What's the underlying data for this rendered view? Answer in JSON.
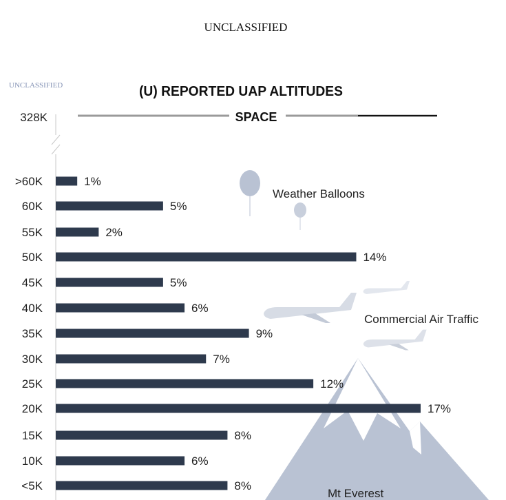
{
  "header": {
    "classification": "UNCLASSIFIED"
  },
  "corner_marking": "UNCLASSIFIED",
  "chart_data": {
    "type": "bar",
    "orientation": "horizontal",
    "title": "(U) REPORTED UAP ALTITUDES",
    "top_marker": {
      "label": "328K",
      "text": "SPACE"
    },
    "categories": [
      ">60K",
      "60K",
      "55K",
      "50K",
      "45K",
      "40K",
      "35K",
      "30K",
      "25K",
      "20K",
      "15K",
      "10K",
      "<5K"
    ],
    "values": [
      1,
      5,
      2,
      14,
      5,
      6,
      9,
      7,
      12,
      17,
      8,
      6,
      8
    ],
    "value_labels": [
      "1%",
      "5%",
      "2%",
      "14%",
      "5%",
      "6%",
      "9%",
      "7%",
      "12%",
      "17%",
      "8%",
      "6%",
      "8%"
    ],
    "xlim": [
      0,
      17
    ],
    "bar_color": "#2e3a4d",
    "annotations": [
      "Weather Balloons",
      "Commercial Air Traffic",
      "Mt Everest"
    ],
    "illustrations": [
      "weather-balloon-icon",
      "airplane-icon",
      "mountain-icon"
    ],
    "illustration_color": "#b9c2d3",
    "grid": false,
    "legend": "none"
  }
}
